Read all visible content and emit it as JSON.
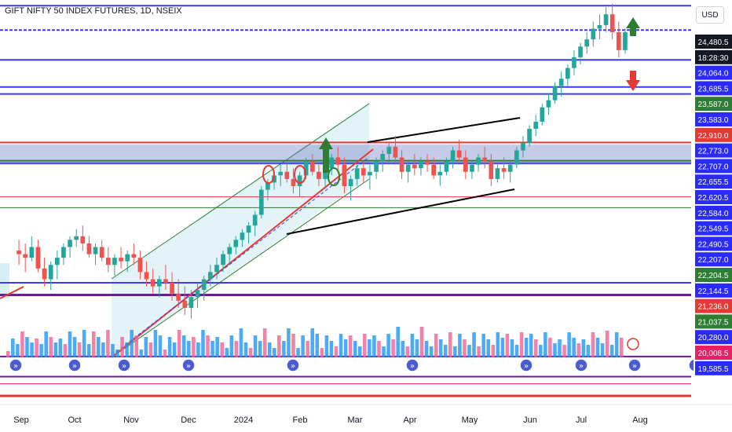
{
  "header": {
    "title": "GIFT NIFTY 50 INDEX FUTURES, 1D, NSEIX",
    "currency_button": "USD"
  },
  "chart_data": {
    "type": "candlestick",
    "title": "GIFT NIFTY 50 INDEX FUTURES, 1D, NSEIX",
    "ylim": [
      19250,
      24900
    ],
    "x_ticks": [
      "Sep",
      "Oct",
      "Nov",
      "Dec",
      "2024",
      "Feb",
      "Mar",
      "Apr",
      "May",
      "Jun",
      "Jul",
      "Aug"
    ],
    "price_labels": [
      {
        "text": "24,480.5",
        "bg": "#131722",
        "fg": "#ffffff"
      },
      {
        "text": "18:28:30",
        "bg": "#131722",
        "fg": "#ffffff"
      },
      {
        "text": "24,064.0",
        "bg": "#2a2aff",
        "fg": "#ffffff"
      },
      {
        "text": "23,685.5",
        "bg": "#2a2aff",
        "fg": "#ffffff"
      },
      {
        "text": "23,587.0",
        "bg": "#2e7d32",
        "fg": "#ffffff"
      },
      {
        "text": "23,583.0",
        "bg": "#2a2aff",
        "fg": "#ffffff"
      },
      {
        "text": "22,910.0",
        "bg": "#e53935",
        "fg": "#ffffff"
      },
      {
        "text": "22,773.0",
        "bg": "#2a2aff",
        "fg": "#ffffff"
      },
      {
        "text": "22,707.0",
        "bg": "#2a2aff",
        "fg": "#ffffff"
      },
      {
        "text": "22,655.5",
        "bg": "#2a2aff",
        "fg": "#ffffff"
      },
      {
        "text": "22,620.5",
        "bg": "#2a2aff",
        "fg": "#ffffff"
      },
      {
        "text": "22,584.0",
        "bg": "#2a2aff",
        "fg": "#ffffff"
      },
      {
        "text": "22,549.5",
        "bg": "#2a2aff",
        "fg": "#ffffff"
      },
      {
        "text": "22,490.5",
        "bg": "#2a2aff",
        "fg": "#ffffff"
      },
      {
        "text": "22,207.0",
        "bg": "#2a2aff",
        "fg": "#ffffff"
      },
      {
        "text": "22,204.5",
        "bg": "#2e7d32",
        "fg": "#ffffff"
      },
      {
        "text": "22,144.5",
        "bg": "#2a2aff",
        "fg": "#ffffff"
      },
      {
        "text": "21,236.0",
        "bg": "#e53935",
        "fg": "#ffffff"
      },
      {
        "text": "21,037.5",
        "bg": "#2e7d32",
        "fg": "#ffffff"
      },
      {
        "text": "20,280.0",
        "bg": "#2a2aff",
        "fg": "#ffffff"
      },
      {
        "text": "20,008.5",
        "bg": "#e91e63",
        "fg": "#ffffff"
      },
      {
        "text": "19,585.5",
        "bg": "#2a2aff",
        "fg": "#ffffff"
      }
    ],
    "hlines": [
      {
        "price": 24820,
        "color": "#3b3bf6",
        "width": 2
      },
      {
        "price": 24480.5,
        "color": "#3b3bf6",
        "width": 2,
        "dash": true
      },
      {
        "price": 24064,
        "color": "#3b3bf6",
        "width": 2
      },
      {
        "price": 23685.5,
        "color": "#3b3bf6",
        "width": 2
      },
      {
        "price": 23587,
        "color": "#3b3bf6",
        "width": 2
      },
      {
        "price": 22910,
        "color": "#e53935",
        "width": 2
      },
      {
        "price": 22655.5,
        "color": "#2e7d32",
        "width": 2
      },
      {
        "price": 22620.5,
        "color": "#3b3bf6",
        "width": 2
      },
      {
        "price": 22150,
        "color": "#e53935",
        "width": 1
      },
      {
        "price": 22000,
        "color": "#2e7d32",
        "width": 1
      },
      {
        "price": 20950,
        "color": "#3b3bf6",
        "width": 2
      },
      {
        "price": 20780,
        "color": "#6a1b9a",
        "width": 3
      },
      {
        "price": 19920,
        "color": "#6a1b9a",
        "width": 2
      },
      {
        "price": 19640,
        "color": "#6a1b9a",
        "width": 2
      },
      {
        "price": 19540,
        "color": "#e91e63",
        "width": 1
      },
      {
        "price": 19370,
        "color": "#e53935",
        "width": 3
      }
    ],
    "band": {
      "top": 22880,
      "bottom": 22600,
      "color": "#5c6bc0"
    },
    "candles": [
      [
        21.4,
        21.55,
        21.2,
        21.35
      ],
      [
        21.35,
        21.5,
        21.1,
        21.3
      ],
      [
        21.3,
        21.6,
        21.25,
        21.45
      ],
      [
        21.45,
        21.55,
        21.1,
        21.15
      ],
      [
        21.15,
        21.3,
        20.9,
        21.0
      ],
      [
        21.0,
        21.25,
        20.85,
        21.2
      ],
      [
        21.2,
        21.4,
        21.0,
        21.3
      ],
      [
        21.3,
        21.5,
        21.2,
        21.45
      ],
      [
        21.45,
        21.6,
        21.3,
        21.55
      ],
      [
        21.55,
        21.7,
        21.45,
        21.6
      ],
      [
        21.6,
        21.75,
        21.4,
        21.5
      ],
      [
        21.5,
        21.6,
        21.3,
        21.35
      ],
      [
        21.35,
        21.5,
        21.2,
        21.45
      ],
      [
        21.45,
        21.55,
        21.25,
        21.3
      ],
      [
        21.3,
        21.45,
        21.1,
        21.2
      ],
      [
        21.2,
        21.35,
        21.05,
        21.3
      ],
      [
        21.3,
        21.45,
        21.15,
        21.25
      ],
      [
        21.25,
        21.4,
        21.1,
        21.35
      ],
      [
        21.35,
        21.5,
        21.2,
        21.3
      ],
      [
        21.3,
        21.4,
        21.0,
        21.1
      ],
      [
        21.1,
        21.25,
        20.9,
        21.0
      ],
      [
        21.0,
        21.15,
        20.8,
        20.9
      ],
      [
        20.9,
        21.05,
        20.75,
        21.0
      ],
      [
        21.0,
        21.2,
        20.85,
        20.95
      ],
      [
        20.95,
        21.1,
        20.7,
        20.8
      ],
      [
        20.8,
        21.0,
        20.6,
        20.7
      ],
      [
        20.7,
        20.9,
        20.5,
        20.6
      ],
      [
        20.6,
        20.85,
        20.45,
        20.75
      ],
      [
        20.75,
        20.95,
        20.6,
        20.85
      ],
      [
        20.85,
        21.05,
        20.7,
        21.0
      ],
      [
        21.0,
        21.2,
        20.9,
        21.1
      ],
      [
        21.1,
        21.3,
        21.0,
        21.2
      ],
      [
        21.2,
        21.4,
        21.1,
        21.35
      ],
      [
        21.35,
        21.5,
        21.2,
        21.45
      ],
      [
        21.45,
        21.6,
        21.35,
        21.55
      ],
      [
        21.55,
        21.7,
        21.45,
        21.65
      ],
      [
        21.65,
        21.8,
        21.5,
        21.75
      ],
      [
        21.75,
        21.95,
        21.6,
        21.9
      ],
      [
        21.9,
        22.3,
        21.85,
        22.25
      ],
      [
        22.25,
        22.4,
        22.1,
        22.35
      ],
      [
        22.35,
        22.5,
        22.25,
        22.45
      ],
      [
        22.45,
        22.6,
        22.3,
        22.5
      ],
      [
        22.5,
        22.65,
        22.35,
        22.4
      ],
      [
        22.4,
        22.55,
        22.2,
        22.3
      ],
      [
        22.3,
        22.5,
        22.15,
        22.45
      ],
      [
        22.45,
        22.7,
        22.4,
        22.65
      ],
      [
        22.65,
        22.75,
        22.45,
        22.5
      ],
      [
        22.5,
        22.6,
        22.3,
        22.4
      ],
      [
        22.4,
        22.6,
        22.3,
        22.55
      ],
      [
        22.55,
        22.75,
        22.45,
        22.7
      ],
      [
        22.7,
        22.85,
        22.5,
        22.6
      ],
      [
        22.6,
        22.7,
        22.2,
        22.3
      ],
      [
        22.3,
        22.45,
        22.1,
        22.4
      ],
      [
        22.4,
        22.6,
        22.3,
        22.55
      ],
      [
        22.55,
        22.65,
        22.35,
        22.45
      ],
      [
        22.45,
        22.6,
        22.25,
        22.5
      ],
      [
        22.5,
        22.7,
        22.4,
        22.65
      ],
      [
        22.65,
        22.8,
        22.5,
        22.75
      ],
      [
        22.75,
        22.9,
        22.6,
        22.85
      ],
      [
        22.85,
        23.0,
        22.6,
        22.7
      ],
      [
        22.7,
        22.8,
        22.4,
        22.5
      ],
      [
        22.5,
        22.65,
        22.35,
        22.6
      ],
      [
        22.6,
        22.75,
        22.45,
        22.55
      ],
      [
        22.55,
        22.7,
        22.45,
        22.65
      ],
      [
        22.65,
        22.75,
        22.5,
        22.6
      ],
      [
        22.6,
        22.7,
        22.4,
        22.45
      ],
      [
        22.45,
        22.6,
        22.3,
        22.5
      ],
      [
        22.5,
        22.7,
        22.45,
        22.65
      ],
      [
        22.65,
        22.85,
        22.55,
        22.8
      ],
      [
        22.8,
        22.95,
        22.65,
        22.7
      ],
      [
        22.7,
        22.8,
        22.4,
        22.5
      ],
      [
        22.5,
        22.65,
        22.4,
        22.6
      ],
      [
        22.6,
        22.75,
        22.5,
        22.7
      ],
      [
        22.7,
        22.85,
        22.55,
        22.65
      ],
      [
        22.65,
        22.75,
        22.3,
        22.4
      ],
      [
        22.4,
        22.6,
        22.35,
        22.55
      ],
      [
        22.55,
        22.7,
        22.4,
        22.5
      ],
      [
        22.5,
        22.65,
        22.35,
        22.6
      ],
      [
        22.6,
        22.85,
        22.55,
        22.8
      ],
      [
        22.8,
        23.0,
        22.7,
        22.9
      ],
      [
        22.9,
        23.15,
        22.85,
        23.1
      ],
      [
        23.1,
        23.3,
        23.0,
        23.2
      ],
      [
        23.2,
        23.45,
        23.15,
        23.4
      ],
      [
        23.4,
        23.6,
        23.3,
        23.5
      ],
      [
        23.5,
        23.75,
        23.45,
        23.7
      ],
      [
        23.7,
        23.9,
        23.55,
        23.8
      ],
      [
        23.8,
        24.0,
        23.7,
        23.95
      ],
      [
        23.95,
        24.2,
        23.85,
        24.1
      ],
      [
        24.1,
        24.3,
        24.0,
        24.25
      ],
      [
        24.25,
        24.45,
        24.15,
        24.35
      ],
      [
        24.35,
        24.6,
        24.25,
        24.5
      ],
      [
        24.5,
        24.7,
        24.35,
        24.55
      ],
      [
        24.55,
        24.8,
        24.45,
        24.7
      ],
      [
        24.7,
        24.85,
        24.35,
        24.45
      ],
      [
        24.45,
        24.6,
        24.1,
        24.2
      ],
      [
        24.2,
        24.5,
        24.15,
        24.45
      ]
    ]
  }
}
